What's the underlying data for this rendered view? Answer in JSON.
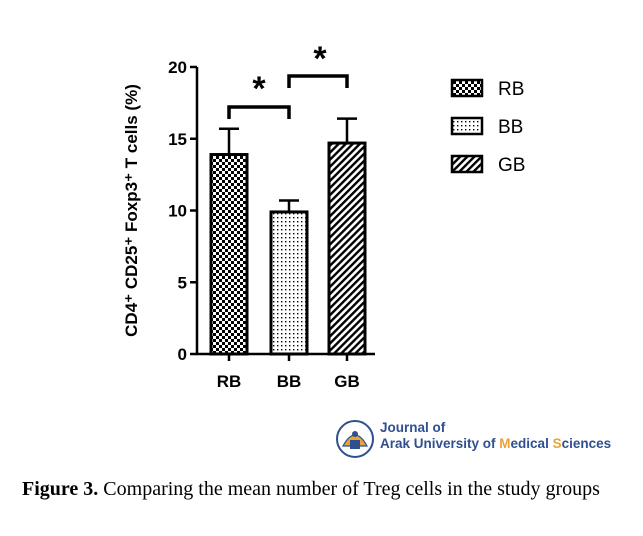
{
  "chart_data": {
    "type": "bar",
    "categories": [
      "RB",
      "BB",
      "GB"
    ],
    "values": [
      13.9,
      9.9,
      14.7
    ],
    "errors": [
      1.8,
      0.8,
      1.7
    ],
    "patterns": [
      "checker",
      "dots",
      "diagonal"
    ],
    "ylabel": "CD4⁺ CD25⁺ Foxp3⁺ T cells (%)",
    "ylim": [
      0,
      20
    ],
    "yticks": [
      0,
      5,
      10,
      15,
      20
    ],
    "legend": {
      "placement": "right",
      "entries": [
        "RB",
        "BB",
        "GB"
      ]
    },
    "significance": [
      {
        "from": "RB",
        "to": "BB",
        "label": "*"
      },
      {
        "from": "BB",
        "to": "GB",
        "label": "*"
      }
    ],
    "grid": false
  },
  "logo": {
    "line1": "Journal of",
    "line2_parts": [
      {
        "text": "Arak University of ",
        "hl": false
      },
      {
        "text": "M",
        "hl": true
      },
      {
        "text": "edical ",
        "hl": false
      },
      {
        "text": "S",
        "hl": true
      },
      {
        "text": "ciences",
        "hl": false
      }
    ]
  },
  "caption": {
    "label": "Figure 3.",
    "text": " Comparing the mean number of Treg cells in the study groups"
  }
}
